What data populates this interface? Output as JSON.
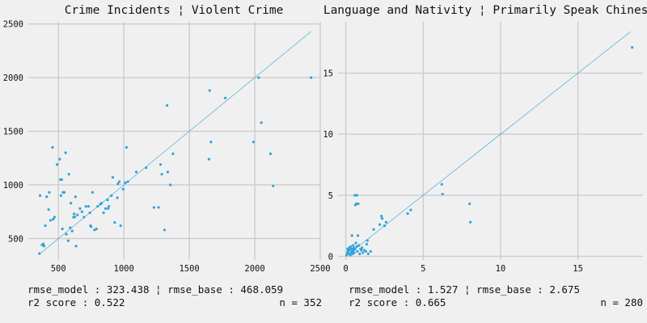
{
  "chart_data": [
    {
      "type": "scatter",
      "title": "Crime Incidents ¦ Violent Crime",
      "xlim": [
        270,
        2500
      ],
      "ylim": [
        300,
        2520
      ],
      "xticks": [
        500,
        1000,
        1500,
        2000,
        2500
      ],
      "yticks": [
        500,
        1000,
        1500,
        2000,
        2500
      ],
      "grid": true,
      "reference_line": [
        [
          350,
          350
        ],
        [
          2430,
          2430
        ]
      ],
      "points": [
        [
          355,
          360
        ],
        [
          360,
          900
        ],
        [
          375,
          440
        ],
        [
          385,
          450
        ],
        [
          390,
          430
        ],
        [
          400,
          620
        ],
        [
          410,
          890
        ],
        [
          425,
          770
        ],
        [
          430,
          930
        ],
        [
          440,
          670
        ],
        [
          455,
          1350
        ],
        [
          460,
          680
        ],
        [
          470,
          700
        ],
        [
          490,
          1190
        ],
        [
          510,
          1240
        ],
        [
          515,
          1050
        ],
        [
          520,
          900
        ],
        [
          525,
          1050
        ],
        [
          530,
          590
        ],
        [
          535,
          930
        ],
        [
          545,
          930
        ],
        [
          555,
          1300
        ],
        [
          560,
          540
        ],
        [
          575,
          480
        ],
        [
          580,
          1100
        ],
        [
          590,
          600
        ],
        [
          595,
          830
        ],
        [
          605,
          570
        ],
        [
          615,
          700
        ],
        [
          620,
          730
        ],
        [
          625,
          700
        ],
        [
          630,
          890
        ],
        [
          635,
          430
        ],
        [
          645,
          720
        ],
        [
          665,
          780
        ],
        [
          680,
          750
        ],
        [
          695,
          700
        ],
        [
          710,
          800
        ],
        [
          730,
          800
        ],
        [
          740,
          740
        ],
        [
          745,
          620
        ],
        [
          750,
          610
        ],
        [
          760,
          930
        ],
        [
          775,
          580
        ],
        [
          790,
          590
        ],
        [
          800,
          800
        ],
        [
          820,
          820
        ],
        [
          830,
          830
        ],
        [
          845,
          740
        ],
        [
          860,
          780
        ],
        [
          875,
          860
        ],
        [
          880,
          780
        ],
        [
          885,
          800
        ],
        [
          905,
          900
        ],
        [
          915,
          1070
        ],
        [
          930,
          650
        ],
        [
          950,
          880
        ],
        [
          955,
          1010
        ],
        [
          965,
          1030
        ],
        [
          975,
          620
        ],
        [
          995,
          960
        ],
        [
          1010,
          1020
        ],
        [
          1020,
          1350
        ],
        [
          1030,
          1030
        ],
        [
          1095,
          1120
        ],
        [
          1170,
          1160
        ],
        [
          1230,
          790
        ],
        [
          1265,
          790
        ],
        [
          1280,
          1190
        ],
        [
          1290,
          1100
        ],
        [
          1310,
          580
        ],
        [
          1330,
          1740
        ],
        [
          1335,
          1120
        ],
        [
          1355,
          1000
        ],
        [
          1375,
          1290
        ],
        [
          1650,
          1240
        ],
        [
          1655,
          1880
        ],
        [
          1665,
          1400
        ],
        [
          1775,
          1810
        ],
        [
          1990,
          1400
        ],
        [
          2030,
          2000
        ],
        [
          2050,
          1580
        ],
        [
          2120,
          1290
        ],
        [
          2140,
          990
        ],
        [
          2430,
          2000
        ]
      ],
      "stats": {
        "rmse_model": "323.438",
        "rmse_base": "468.059",
        "r2_score": "0.522",
        "n": "352"
      }
    },
    {
      "type": "scatter",
      "title": "Language and Nativity ¦ Primarily Speak Chinese",
      "xlim": [
        -0.5,
        19.2
      ],
      "ylim": [
        -0.3,
        19.2
      ],
      "xticks": [
        0,
        5,
        10,
        15
      ],
      "yticks": [
        0,
        5,
        10,
        15
      ],
      "grid": true,
      "reference_line": [
        [
          0,
          0
        ],
        [
          18.4,
          18.4
        ]
      ],
      "points": [
        [
          0.05,
          0.1
        ],
        [
          0.1,
          0.3
        ],
        [
          0.12,
          0.6
        ],
        [
          0.15,
          0.4
        ],
        [
          0.2,
          0.2
        ],
        [
          0.22,
          0.7
        ],
        [
          0.25,
          0.5
        ],
        [
          0.3,
          0.1
        ],
        [
          0.32,
          0.8
        ],
        [
          0.35,
          0.3
        ],
        [
          0.38,
          0.6
        ],
        [
          0.4,
          1.7
        ],
        [
          0.42,
          0.4
        ],
        [
          0.45,
          0.2
        ],
        [
          0.48,
          0.9
        ],
        [
          0.5,
          0.5
        ],
        [
          0.52,
          0.7
        ],
        [
          0.55,
          0.3
        ],
        [
          0.58,
          5.0
        ],
        [
          0.6,
          0.6
        ],
        [
          0.62,
          4.2
        ],
        [
          0.65,
          1.1
        ],
        [
          0.68,
          4.3
        ],
        [
          0.7,
          0.8
        ],
        [
          0.72,
          5.0
        ],
        [
          0.75,
          0.4
        ],
        [
          0.78,
          1.7
        ],
        [
          0.8,
          4.3
        ],
        [
          0.85,
          0.9
        ],
        [
          0.9,
          0.2
        ],
        [
          0.95,
          0.6
        ],
        [
          1.0,
          0.5
        ],
        [
          1.05,
          0.7
        ],
        [
          1.1,
          0.3
        ],
        [
          1.2,
          0.5
        ],
        [
          1.3,
          0.4
        ],
        [
          1.35,
          1.0
        ],
        [
          1.4,
          1.3
        ],
        [
          1.45,
          0.2
        ],
        [
          1.6,
          0.4
        ],
        [
          1.8,
          2.2
        ],
        [
          2.2,
          2.6
        ],
        [
          2.3,
          3.3
        ],
        [
          2.35,
          3.1
        ],
        [
          2.5,
          2.5
        ],
        [
          2.6,
          2.8
        ],
        [
          4.0,
          3.5
        ],
        [
          4.2,
          3.8
        ],
        [
          6.2,
          5.9
        ],
        [
          6.25,
          5.1
        ],
        [
          8.0,
          4.3
        ],
        [
          8.05,
          2.8
        ],
        [
          18.5,
          17.1
        ]
      ],
      "stats": {
        "rmse_model": "1.527",
        "rmse_base": "2.675",
        "r2_score": "0.665",
        "n": "280"
      }
    }
  ]
}
